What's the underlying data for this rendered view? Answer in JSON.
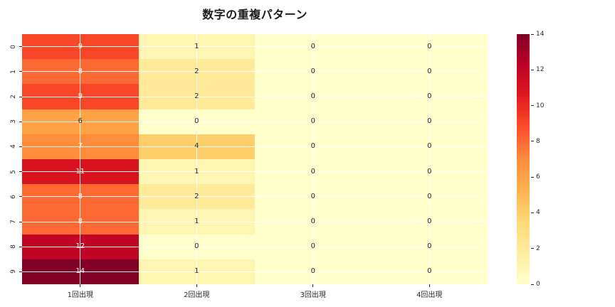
{
  "title": "数字の重複パターン",
  "chart_data": {
    "type": "heatmap",
    "title": "数字の重複パターン",
    "rows": [
      "0",
      "1",
      "2",
      "3",
      "4",
      "5",
      "6",
      "7",
      "8",
      "9"
    ],
    "columns": [
      "1回出現",
      "2回出現",
      "3回出現",
      "4回出現"
    ],
    "values": [
      [
        9,
        1,
        0,
        0
      ],
      [
        8,
        2,
        0,
        0
      ],
      [
        9,
        2,
        0,
        0
      ],
      [
        6,
        0,
        0,
        0
      ],
      [
        7,
        4,
        0,
        0
      ],
      [
        11,
        1,
        0,
        0
      ],
      [
        8,
        2,
        0,
        0
      ],
      [
        8,
        1,
        0,
        0
      ],
      [
        12,
        0,
        0,
        0
      ],
      [
        14,
        1,
        0,
        0
      ]
    ],
    "vmin": 0,
    "vmax": 14,
    "colorbar_ticks": [
      0,
      2,
      4,
      6,
      8,
      10,
      12,
      14
    ],
    "colormap": "YlOrRd",
    "grid": true,
    "annotated": true,
    "legend_position": "right-colorbar"
  },
  "colors": {
    "background": "#ffffff",
    "tick_text": "#262626",
    "title_text": "#1a1a1a",
    "grid_line": "#ffffff",
    "annot_dark": "#262626",
    "annot_light": "#ffffff",
    "colormap_stops": [
      "#ffffcc",
      "#ffeda0",
      "#fed976",
      "#feb24c",
      "#fd8d3c",
      "#fc4e2a",
      "#e31a1c",
      "#bd0026",
      "#800026"
    ]
  }
}
